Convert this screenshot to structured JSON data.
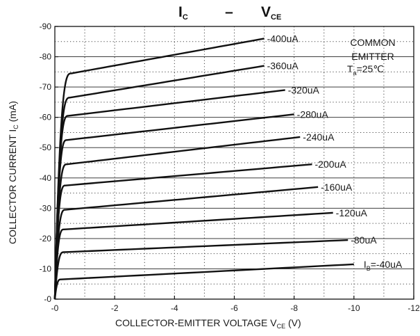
{
  "chart_data": {
    "type": "line",
    "title": {
      "left_main": "I",
      "left_sub": "C",
      "dash": "–",
      "right_main": "V",
      "right_sub": "CE"
    },
    "ylabel": {
      "main": "COLLECTOR CURRENT",
      "sym": "I",
      "sym_sub": "C",
      "unit": "(mA)"
    },
    "xlabel": {
      "main": "COLLECTOR-EMITTER VOLTAGE",
      "sym": "V",
      "sym_sub": "CE",
      "unit": "(V)"
    },
    "annotation": {
      "line1": "COMMON",
      "line2": "EMITTER",
      "line3_main": "T",
      "line3_sub": "a",
      "line3_rest": "=25℃"
    },
    "xlim": [
      0,
      -12
    ],
    "ylim": [
      0,
      -90
    ],
    "x_ticks": [
      0,
      -2,
      -4,
      -6,
      -8,
      -10,
      -12
    ],
    "x_tick_labels": [
      "-0",
      "-2",
      "-4",
      "-6",
      "-8",
      "-10",
      "-12"
    ],
    "y_ticks": [
      0,
      -10,
      -20,
      -30,
      -40,
      -50,
      -60,
      -70,
      -80,
      -90
    ],
    "y_tick_labels": [
      "-0",
      "-10",
      "-20",
      "-30",
      "-40",
      "-50",
      "-60",
      "-70",
      "-80",
      "-90"
    ],
    "grid": true,
    "series": [
      {
        "name": "I_B=-40uA",
        "label_pre": "I",
        "label_sub": "B",
        "label_rest": "=-40uA",
        "knee_v": -0.2,
        "knee_i": -6.5,
        "end_v": -10,
        "end_i": -11.5
      },
      {
        "name": "-80uA",
        "label": "-80uA",
        "knee_v": -0.3,
        "knee_i": -15.5,
        "end_v": -9.8,
        "end_i": -19.5
      },
      {
        "name": "-120uA",
        "label": "-120uA",
        "knee_v": -0.3,
        "knee_i": -23,
        "end_v": -9.3,
        "end_i": -28.5
      },
      {
        "name": "-160uA",
        "label": "-160uA",
        "knee_v": -0.35,
        "knee_i": -29.5,
        "end_v": -8.8,
        "end_i": -37
      },
      {
        "name": "-200uA",
        "label": "-200uA",
        "knee_v": -0.35,
        "knee_i": -37.5,
        "end_v": -8.6,
        "end_i": -44.5
      },
      {
        "name": "-240uA",
        "label": "-240uA",
        "knee_v": -0.4,
        "knee_i": -44.5,
        "end_v": -8.2,
        "end_i": -53.5
      },
      {
        "name": "-280uA",
        "label": "-280uA",
        "knee_v": -0.4,
        "knee_i": -52.5,
        "end_v": -8.0,
        "end_i": -61
      },
      {
        "name": "-320uA",
        "label": "-320uA",
        "knee_v": -0.45,
        "knee_i": -60.5,
        "end_v": -7.7,
        "end_i": -69
      },
      {
        "name": "-360uA",
        "label": "-360uA",
        "knee_v": -0.5,
        "knee_i": -66.5,
        "end_v": -7.0,
        "end_i": -77
      },
      {
        "name": "-400uA",
        "label": "-400uA",
        "knee_v": -0.55,
        "knee_i": -74.5,
        "end_v": -7.0,
        "end_i": -86
      }
    ]
  }
}
